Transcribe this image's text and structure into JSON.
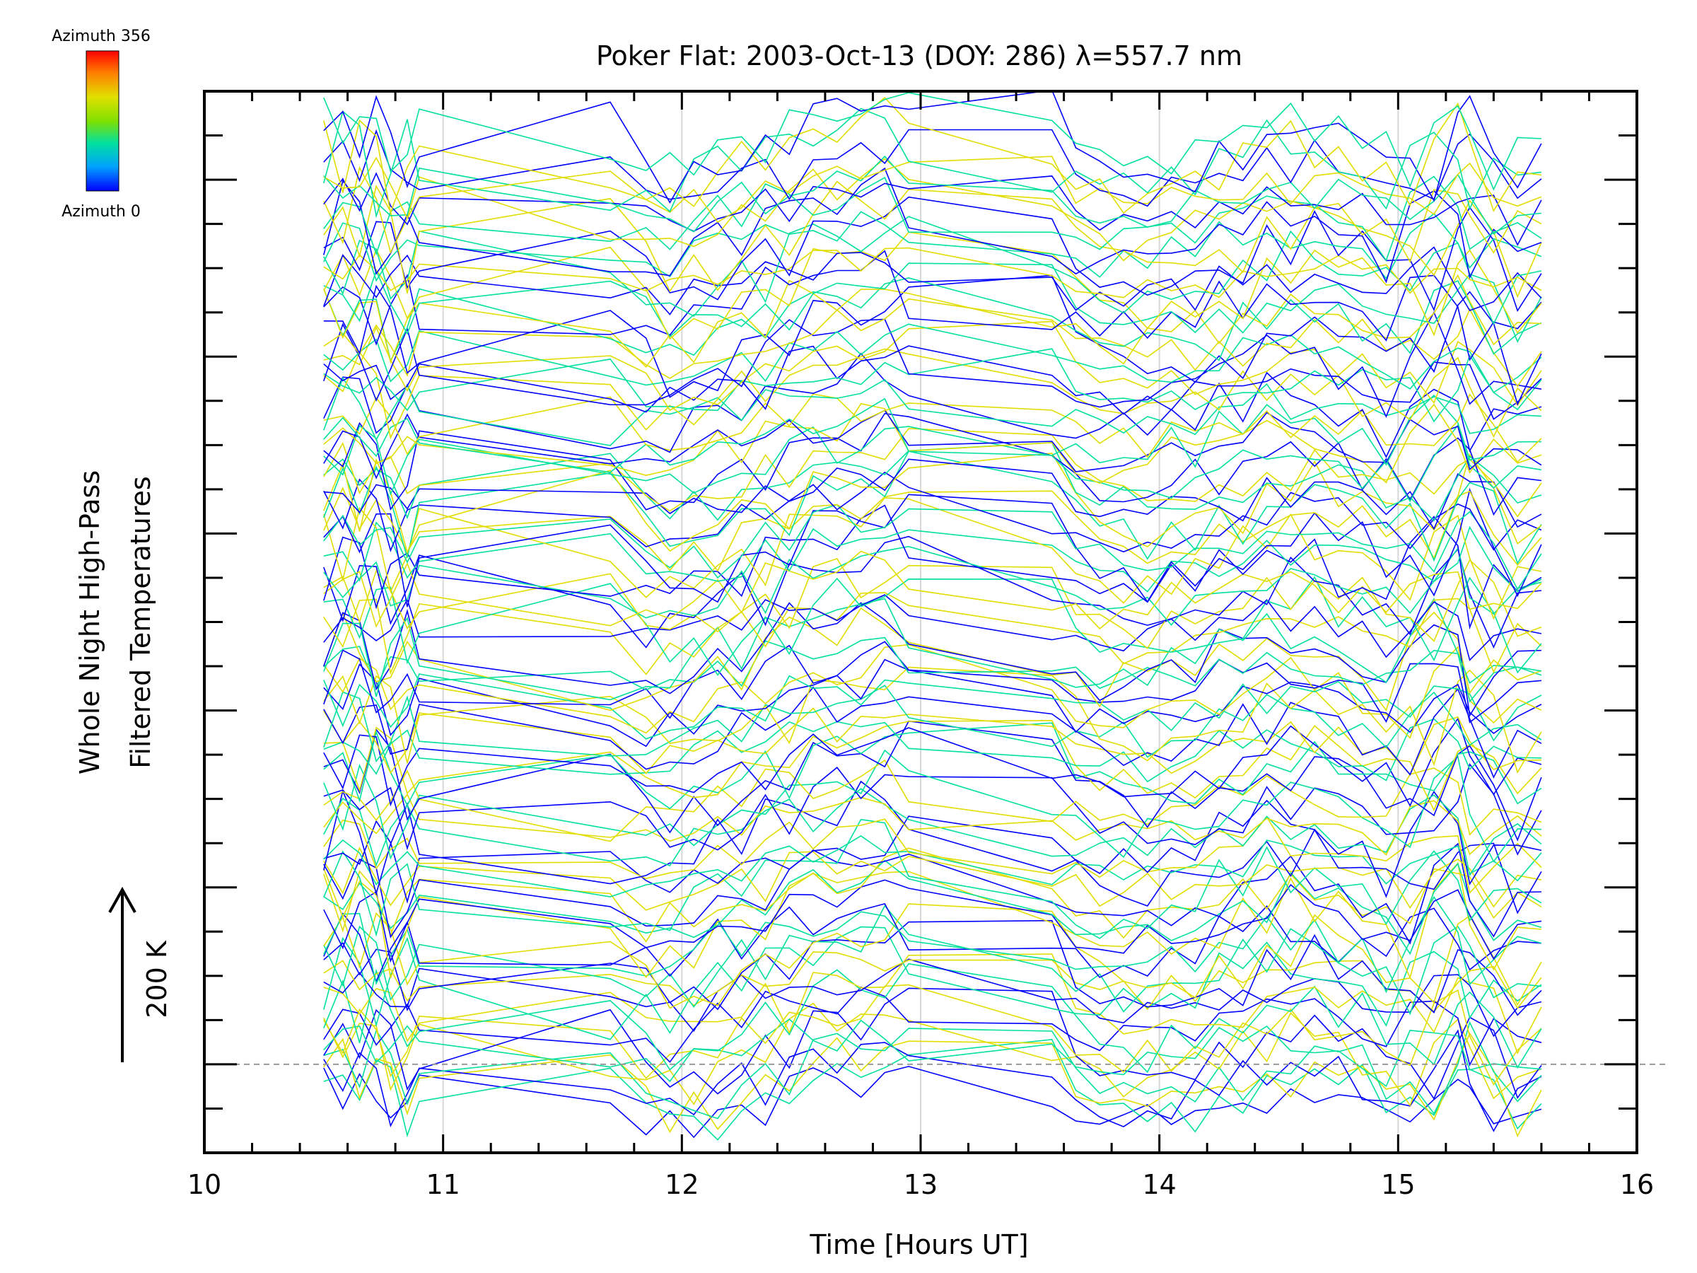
{
  "chart_data": {
    "type": "line",
    "title": "Poker Flat: 2003-Oct-13 (DOY: 286) λ=557.7 nm",
    "xlabel": "Time [Hours UT]",
    "ylabel_line1": "Whole Night High-Pass",
    "ylabel_line2": "Filtered Temperatures",
    "scale_label": "200 K",
    "xlim": [
      10,
      16
    ],
    "x_ticks": [
      "10",
      "11",
      "12",
      "13",
      "14",
      "15",
      "16"
    ],
    "x_gridlines": [
      11,
      12,
      13,
      14,
      15
    ],
    "ylim": [
      -200,
      2200
    ],
    "y_major_step": 400,
    "y_minor_step": 100,
    "baseline": 0,
    "grid": true,
    "legend": "colorbar top-left",
    "colorbar": {
      "top_label": "Azimuth 356",
      "bottom_label": "Azimuth 0",
      "min": 0,
      "max": 356,
      "colors": [
        "#0000ff",
        "#00a0ff",
        "#00e0a0",
        "#80e000",
        "#e0e000",
        "#ff8000",
        "#ff0000"
      ]
    },
    "data_x_range": [
      10.5,
      15.6
    ],
    "series_count": 110,
    "series_spacing": 20,
    "anchor_times": [
      10.5,
      10.58,
      10.65,
      10.72,
      10.78,
      10.85,
      10.9,
      11.7,
      11.85,
      11.95,
      12.05,
      12.15,
      12.25,
      12.35,
      12.45,
      12.55,
      12.65,
      12.75,
      12.85,
      12.95,
      13.55,
      13.65,
      13.75,
      13.85,
      13.95,
      14.05,
      14.15,
      14.25,
      14.35,
      14.45,
      14.55,
      14.65,
      14.75,
      14.85,
      14.95,
      15.05,
      15.15,
      15.25,
      15.3,
      15.4,
      15.5,
      15.6
    ],
    "common_profile_K": [
      20,
      60,
      -20,
      70,
      40,
      -60,
      -5,
      55,
      -10,
      -60,
      -35,
      -55,
      -15,
      25,
      -25,
      55,
      70,
      45,
      55,
      90,
      85,
      10,
      -20,
      -35,
      -55,
      -25,
      -40,
      -5,
      -30,
      35,
      10,
      60,
      20,
      30,
      -15,
      -5,
      -60,
      40,
      75,
      20,
      -70,
      -10
    ]
  }
}
